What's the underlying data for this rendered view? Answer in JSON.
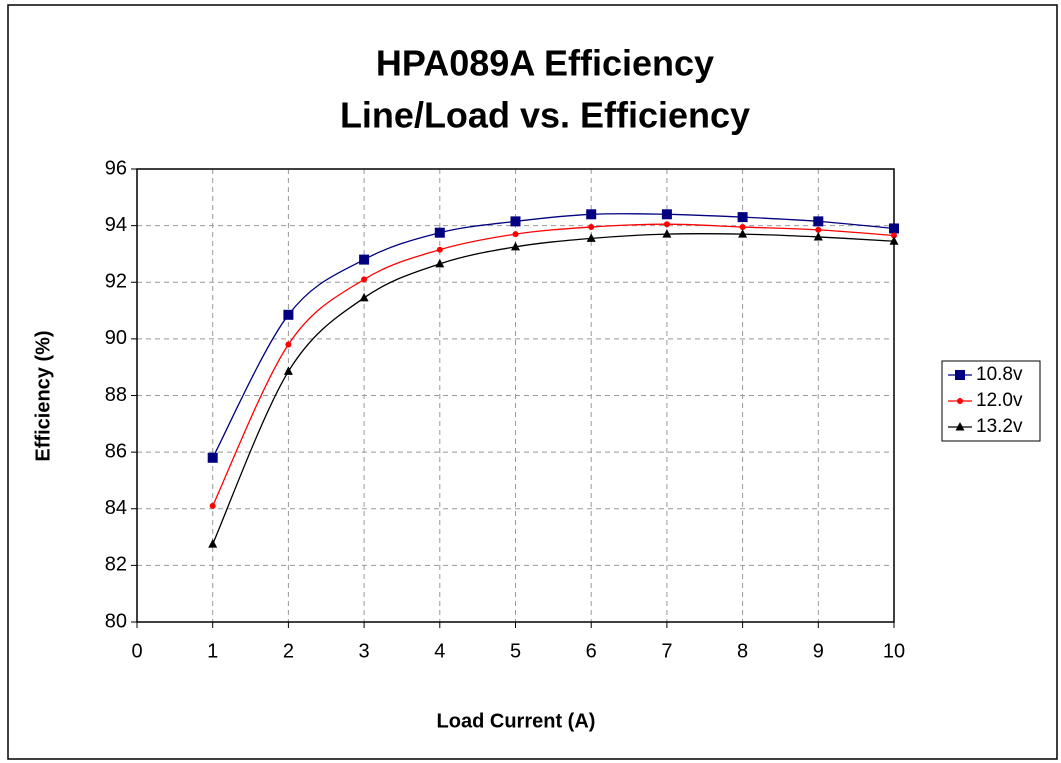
{
  "chart_data": {
    "type": "line",
    "title": [
      "HPA089A Efficiency",
      "Line/Load vs. Efficiency"
    ],
    "x_label": "Load Current (A)",
    "y_label": "Efficiency (%)",
    "x": [
      1,
      2,
      3,
      4,
      5,
      6,
      7,
      8,
      9,
      10
    ],
    "series": [
      {
        "name": "10.8v",
        "color": "#000080",
        "marker": "square",
        "values": [
          85.8,
          90.85,
          92.8,
          93.75,
          94.15,
          94.4,
          94.4,
          94.3,
          94.15,
          93.9
        ]
      },
      {
        "name": "12.0v",
        "color": "#ff0000",
        "marker": "circle",
        "values": [
          84.1,
          89.8,
          92.1,
          93.15,
          93.7,
          93.95,
          94.05,
          93.95,
          93.85,
          93.65
        ]
      },
      {
        "name": "13.2v",
        "color": "#000000",
        "marker": "triangle",
        "values": [
          82.75,
          88.85,
          91.45,
          92.65,
          93.25,
          93.55,
          93.7,
          93.7,
          93.6,
          93.45
        ]
      }
    ],
    "xlim": [
      0,
      10
    ],
    "xticks": [
      0,
      1,
      2,
      3,
      4,
      5,
      6,
      7,
      8,
      9,
      10
    ],
    "ylim": [
      80,
      96
    ],
    "yticks": [
      80,
      82,
      84,
      86,
      88,
      90,
      92,
      94,
      96
    ],
    "grid": true,
    "legend": "right"
  }
}
